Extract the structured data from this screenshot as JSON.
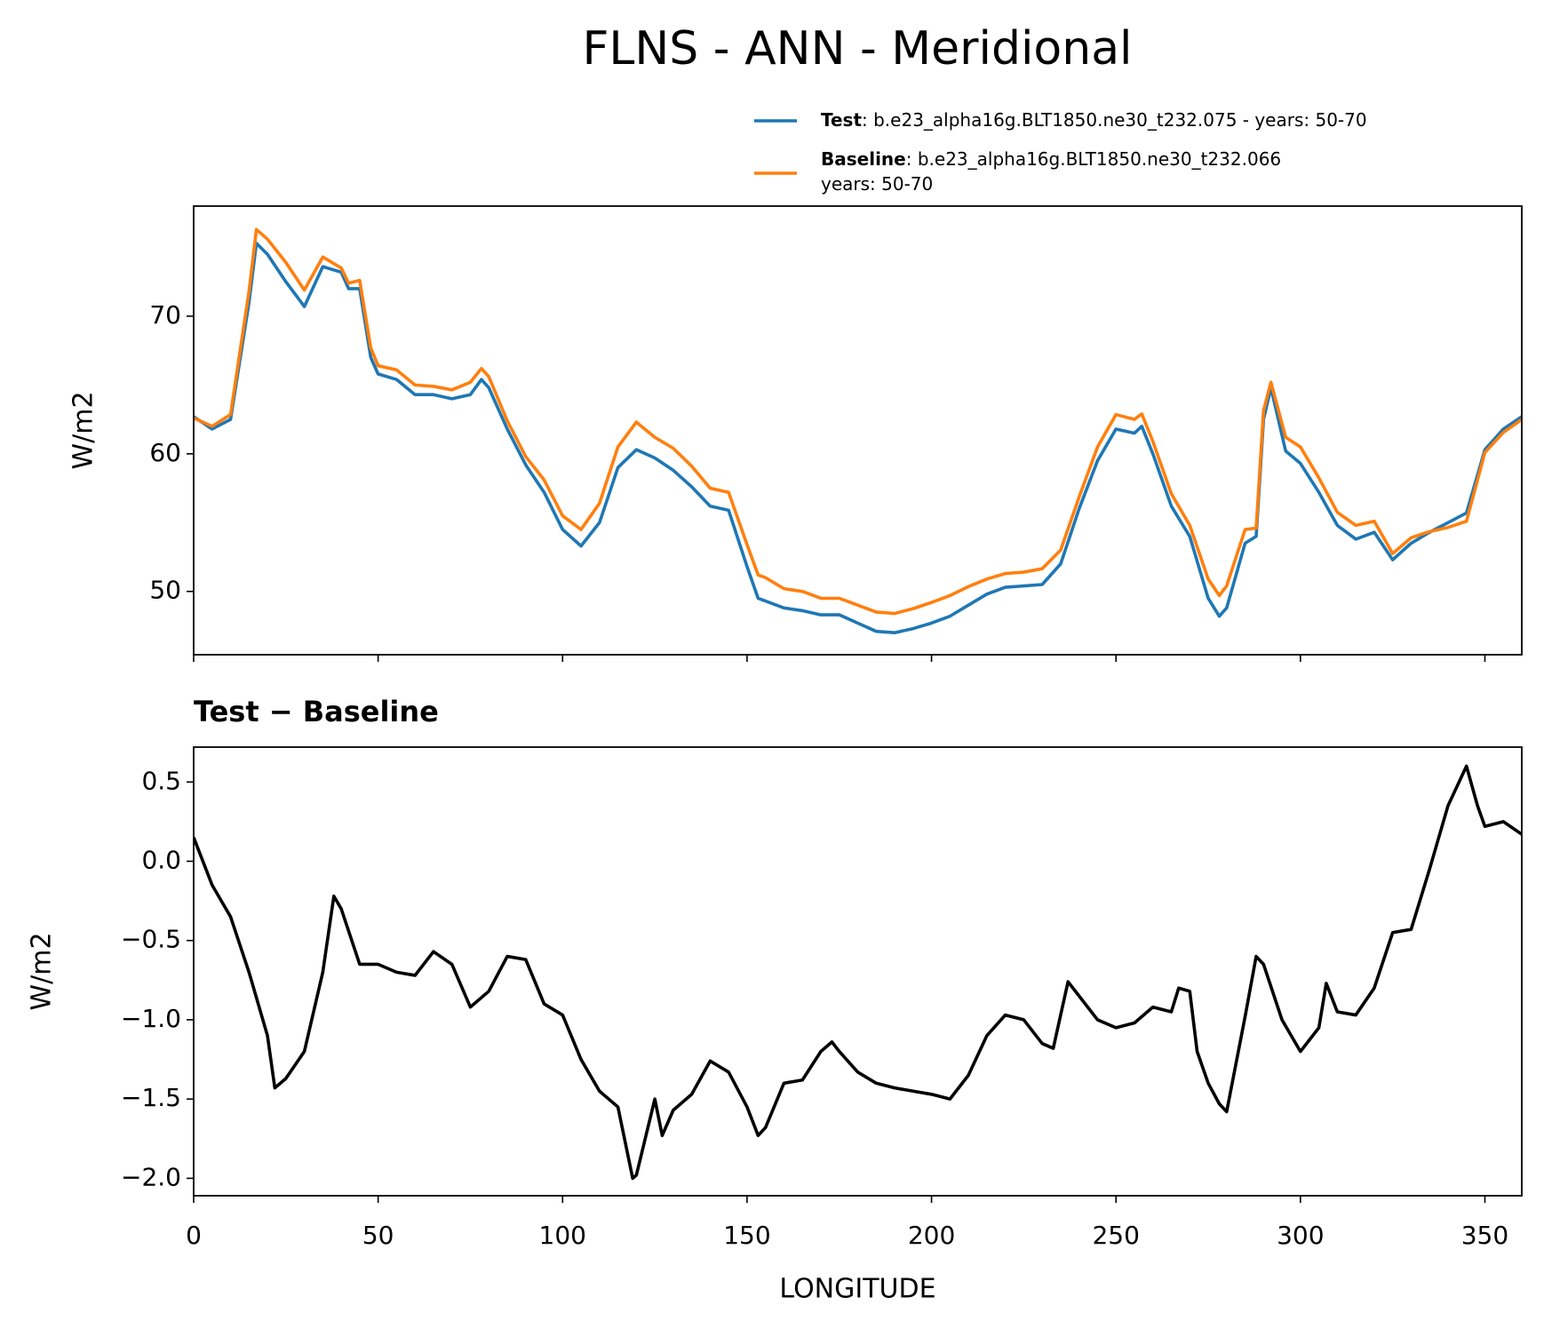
{
  "chart_data": [
    {
      "type": "line",
      "title": "FLNS - ANN - Meridional",
      "ylabel": "W/m2",
      "x": [
        0,
        5,
        10,
        15,
        17,
        20,
        25,
        30,
        35,
        40,
        42,
        45,
        48,
        50,
        55,
        60,
        65,
        70,
        75,
        78,
        80,
        85,
        90,
        95,
        100,
        105,
        110,
        115,
        120,
        125,
        130,
        135,
        140,
        145,
        150,
        153,
        155,
        160,
        165,
        170,
        175,
        180,
        185,
        190,
        195,
        200,
        205,
        210,
        215,
        220,
        225,
        230,
        235,
        240,
        245,
        250,
        255,
        257,
        260,
        265,
        270,
        275,
        278,
        280,
        285,
        288,
        290,
        292,
        296,
        300,
        305,
        310,
        315,
        320,
        325,
        330,
        335,
        340,
        345,
        350,
        355,
        360
      ],
      "series": [
        {
          "name": "Test",
          "description": [
            ": b.e23_alpha16g.BLT1850.ne30_t232.075 - years: 50-70"
          ],
          "color": "#1f77b4",
          "values": [
            62.7,
            61.8,
            62.5,
            71,
            75.3,
            74.5,
            72.5,
            70.7,
            73.6,
            73.2,
            72,
            72,
            67,
            65.8,
            65.4,
            64.3,
            64.3,
            64.0,
            64.3,
            65.4,
            64.8,
            61.8,
            59.2,
            57.2,
            54.5,
            53.3,
            55,
            59,
            60.3,
            59.7,
            58.8,
            57.6,
            56.2,
            55.9,
            51.8,
            49.5,
            49.3,
            48.8,
            48.6,
            48.3,
            48.3,
            47.7,
            47.1,
            47.0,
            47.3,
            47.7,
            48.2,
            49.0,
            49.8,
            50.3,
            50.4,
            50.5,
            52,
            56,
            59.5,
            61.8,
            61.5,
            62,
            60,
            56.2,
            54,
            49.5,
            48.2,
            48.8,
            53.5,
            54,
            62.5,
            64.8,
            60.2,
            59.3,
            57.2,
            54.8,
            53.8,
            54.3,
            52.3,
            53.5,
            54.3,
            55,
            55.7,
            60.3,
            61.8,
            62.7
          ]
        },
        {
          "name": "Baseline",
          "description": [
            ": b.e23_alpha16g.BLT1850.ne30_t232.066",
            "years: 50-70"
          ],
          "color": "#ff7f0e",
          "values": [
            62.6,
            62.0,
            62.85,
            71.8,
            76.3,
            75.6,
            73.9,
            71.9,
            74.3,
            73.5,
            72.4,
            72.6,
            67.7,
            66.4,
            66.1,
            65.0,
            64.9,
            64.65,
            65.2,
            66.2,
            65.6,
            62.4,
            59.8,
            58.1,
            55.5,
            54.5,
            56.4,
            60.5,
            62.3,
            61.2,
            60.4,
            59.1,
            57.5,
            57.2,
            53.4,
            51.2,
            51.0,
            50.2,
            50.0,
            49.5,
            49.5,
            49.0,
            48.5,
            48.4,
            48.75,
            49.2,
            49.7,
            50.35,
            50.9,
            51.3,
            51.4,
            51.65,
            53,
            56.85,
            60.5,
            62.85,
            62.5,
            62.9,
            60.9,
            57.1,
            54.8,
            50.9,
            49.7,
            50.4,
            54.5,
            54.6,
            63.15,
            65.2,
            61.2,
            60.5,
            58.25,
            55.75,
            54.8,
            55.1,
            52.75,
            53.9,
            54.35,
            54.65,
            55.1,
            60.1,
            61.55,
            62.5
          ]
        }
      ],
      "xlim": [
        0,
        360
      ],
      "xticks": [
        0,
        50,
        100,
        150,
        200,
        250,
        300,
        350
      ],
      "ylim": [
        45.4,
        78
      ],
      "yticks": [
        50,
        60,
        70
      ]
    },
    {
      "type": "line",
      "title": "Test − Baseline",
      "ylabel": "W/m2",
      "xlabel": "LONGITUDE",
      "x": [
        0,
        5,
        10,
        15,
        20,
        22,
        25,
        30,
        35,
        38,
        40,
        45,
        50,
        55,
        60,
        65,
        70,
        75,
        80,
        85,
        90,
        95,
        100,
        105,
        110,
        115,
        119,
        120,
        125,
        127,
        130,
        135,
        140,
        145,
        150,
        153,
        155,
        160,
        165,
        170,
        173,
        175,
        180,
        185,
        190,
        195,
        200,
        205,
        210,
        215,
        220,
        225,
        230,
        233,
        237,
        240,
        245,
        250,
        255,
        260,
        265,
        267,
        270,
        272,
        275,
        278,
        280,
        285,
        288,
        290,
        295,
        300,
        305,
        307,
        310,
        315,
        320,
        325,
        330,
        335,
        340,
        343,
        345,
        348,
        350,
        355,
        360
      ],
      "series": [
        {
          "color": "#000000",
          "values": [
            0.15,
            -0.15,
            -0.35,
            -0.7,
            -1.1,
            -1.43,
            -1.37,
            -1.2,
            -0.7,
            -0.22,
            -0.3,
            -0.65,
            -0.65,
            -0.7,
            -0.72,
            -0.57,
            -0.65,
            -0.92,
            -0.82,
            -0.6,
            -0.62,
            -0.9,
            -0.97,
            -1.25,
            -1.45,
            -1.55,
            -2.0,
            -1.98,
            -1.5,
            -1.73,
            -1.57,
            -1.47,
            -1.26,
            -1.33,
            -1.55,
            -1.73,
            -1.68,
            -1.4,
            -1.38,
            -1.2,
            -1.14,
            -1.2,
            -1.33,
            -1.4,
            -1.43,
            -1.45,
            -1.47,
            -1.5,
            -1.35,
            -1.1,
            -0.97,
            -1.0,
            -1.15,
            -1.18,
            -0.76,
            -0.85,
            -1.0,
            -1.05,
            -1.02,
            -0.92,
            -0.95,
            -0.8,
            -0.82,
            -1.2,
            -1.4,
            -1.53,
            -1.58,
            -0.98,
            -0.6,
            -0.65,
            -1.0,
            -1.2,
            -1.05,
            -0.77,
            -0.95,
            -0.97,
            -0.8,
            -0.45,
            -0.43,
            -0.05,
            0.35,
            0.5,
            0.6,
            0.35,
            0.22,
            0.25,
            0.17
          ]
        }
      ],
      "xlim": [
        0,
        360
      ],
      "xticks": [
        0,
        50,
        100,
        150,
        200,
        250,
        300,
        350
      ],
      "ylim": [
        -2.11,
        0.72
      ],
      "yticks": [
        {
          "value": -2.0,
          "label": "−2.0"
        },
        {
          "value": -1.5,
          "label": "−1.5"
        },
        {
          "value": -1.0,
          "label": "−1.0"
        },
        {
          "value": -0.5,
          "label": "−0.5"
        },
        {
          "value": 0.0,
          "label": "0.0"
        },
        {
          "value": 0.5,
          "label": "0.5"
        }
      ]
    }
  ]
}
